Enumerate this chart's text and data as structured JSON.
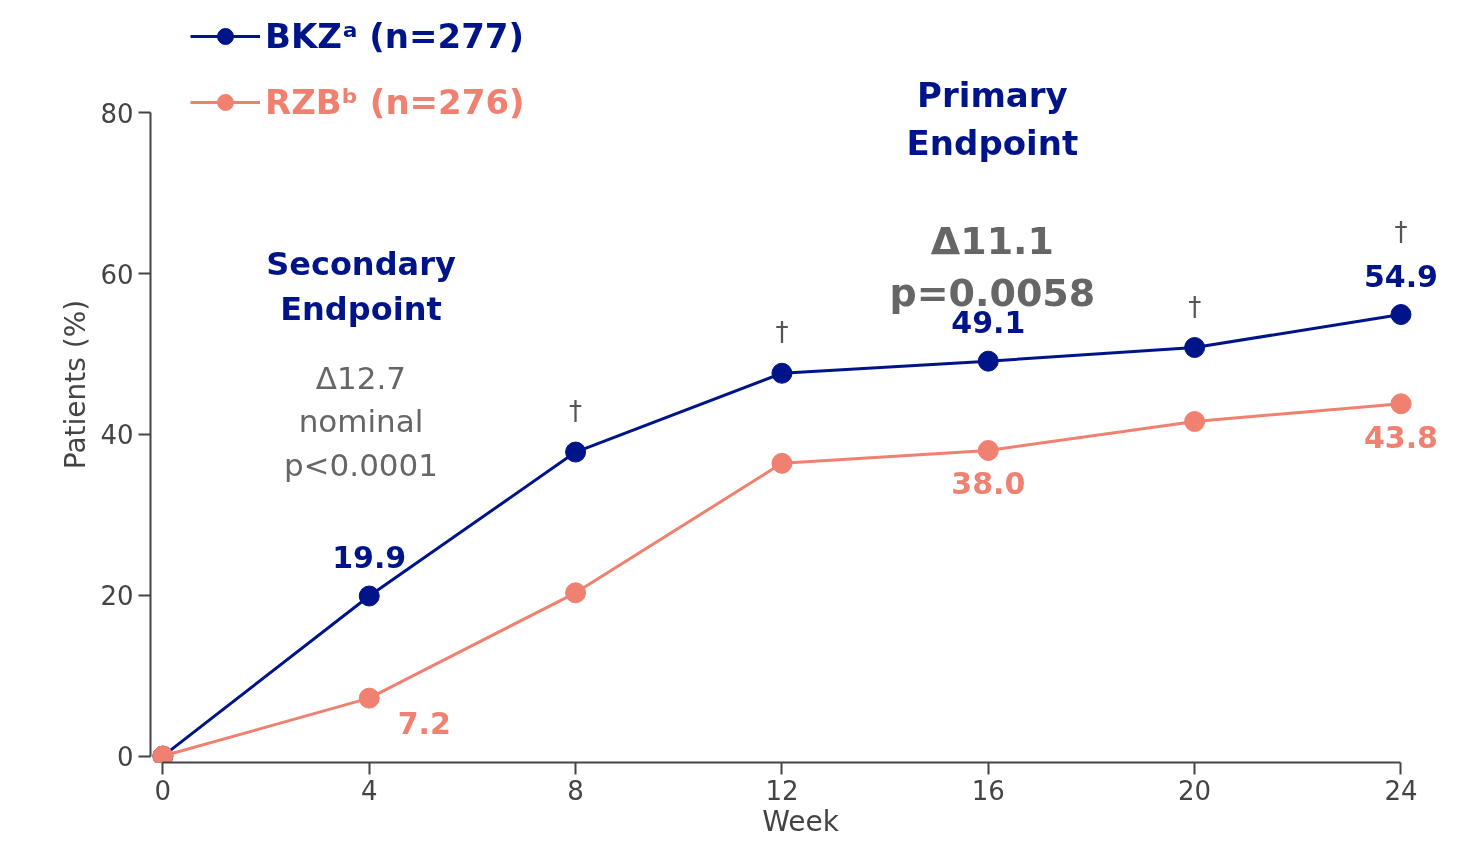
{
  "chart_data": {
    "type": "line",
    "xlabel": "Week",
    "ylabel": "Patients (%)",
    "x": [
      0,
      4,
      8,
      12,
      16,
      20,
      24
    ],
    "xlim": [
      0,
      24
    ],
    "xticks": [
      0,
      4,
      8,
      12,
      16,
      20,
      24
    ],
    "ylim": [
      0,
      80
    ],
    "yticks": [
      0,
      20,
      40,
      60,
      80
    ],
    "grid": false,
    "legend": "top left",
    "marker": "circle",
    "line_style": "solid",
    "series": [
      {
        "name": "BKZᵃ (n=277)",
        "color": "#001489",
        "values": [
          0,
          19.9,
          37.8,
          47.6,
          49.1,
          50.8,
          54.9
        ],
        "value_labels": [
          null,
          "19.9",
          null,
          null,
          "49.1",
          null,
          "54.9"
        ]
      },
      {
        "name": "RZBᵇ (n=276)",
        "color": "#f08070",
        "values": [
          0,
          7.2,
          20.3,
          36.4,
          38.0,
          41.6,
          43.8
        ],
        "value_labels": [
          null,
          "7.2",
          null,
          null,
          "38.0",
          null,
          "43.8"
        ]
      }
    ],
    "annotations": [
      "Secondary\nEndpoint",
      "Δ12.7\nnominal\np<0.0001",
      "Primary\nEndpoint",
      "Δ11.1\np=0.0058",
      {
        "text": "†",
        "x": 8,
        "y": 37.8
      },
      {
        "text": "†",
        "x": 12,
        "y": 47.6
      },
      {
        "text": "†",
        "x": 20,
        "y": 50.8
      },
      {
        "text": "†",
        "x": 24,
        "y": 54.9
      }
    ]
  }
}
